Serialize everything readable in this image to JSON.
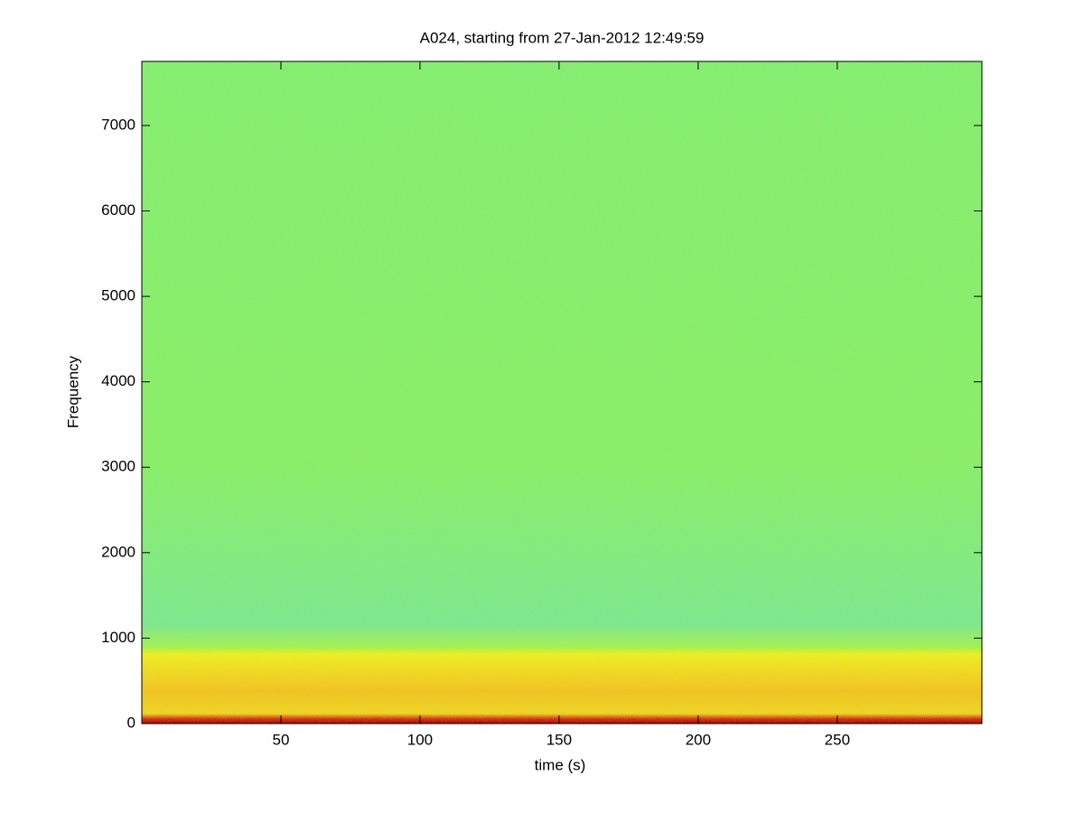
{
  "chart_data": {
    "type": "spectrogram",
    "title": "A024, starting from 27-Jan-2012 12:49:59",
    "x_label": "time (s)",
    "y_label": "Frequency",
    "xlim": [
      0,
      302
    ],
    "xticks": [
      50,
      100,
      150,
      200,
      250
    ],
    "ylim": [
      0,
      7750
    ],
    "yticks": [
      0,
      1000,
      2000,
      3000,
      4000,
      5000,
      6000,
      7000
    ]
  }
}
